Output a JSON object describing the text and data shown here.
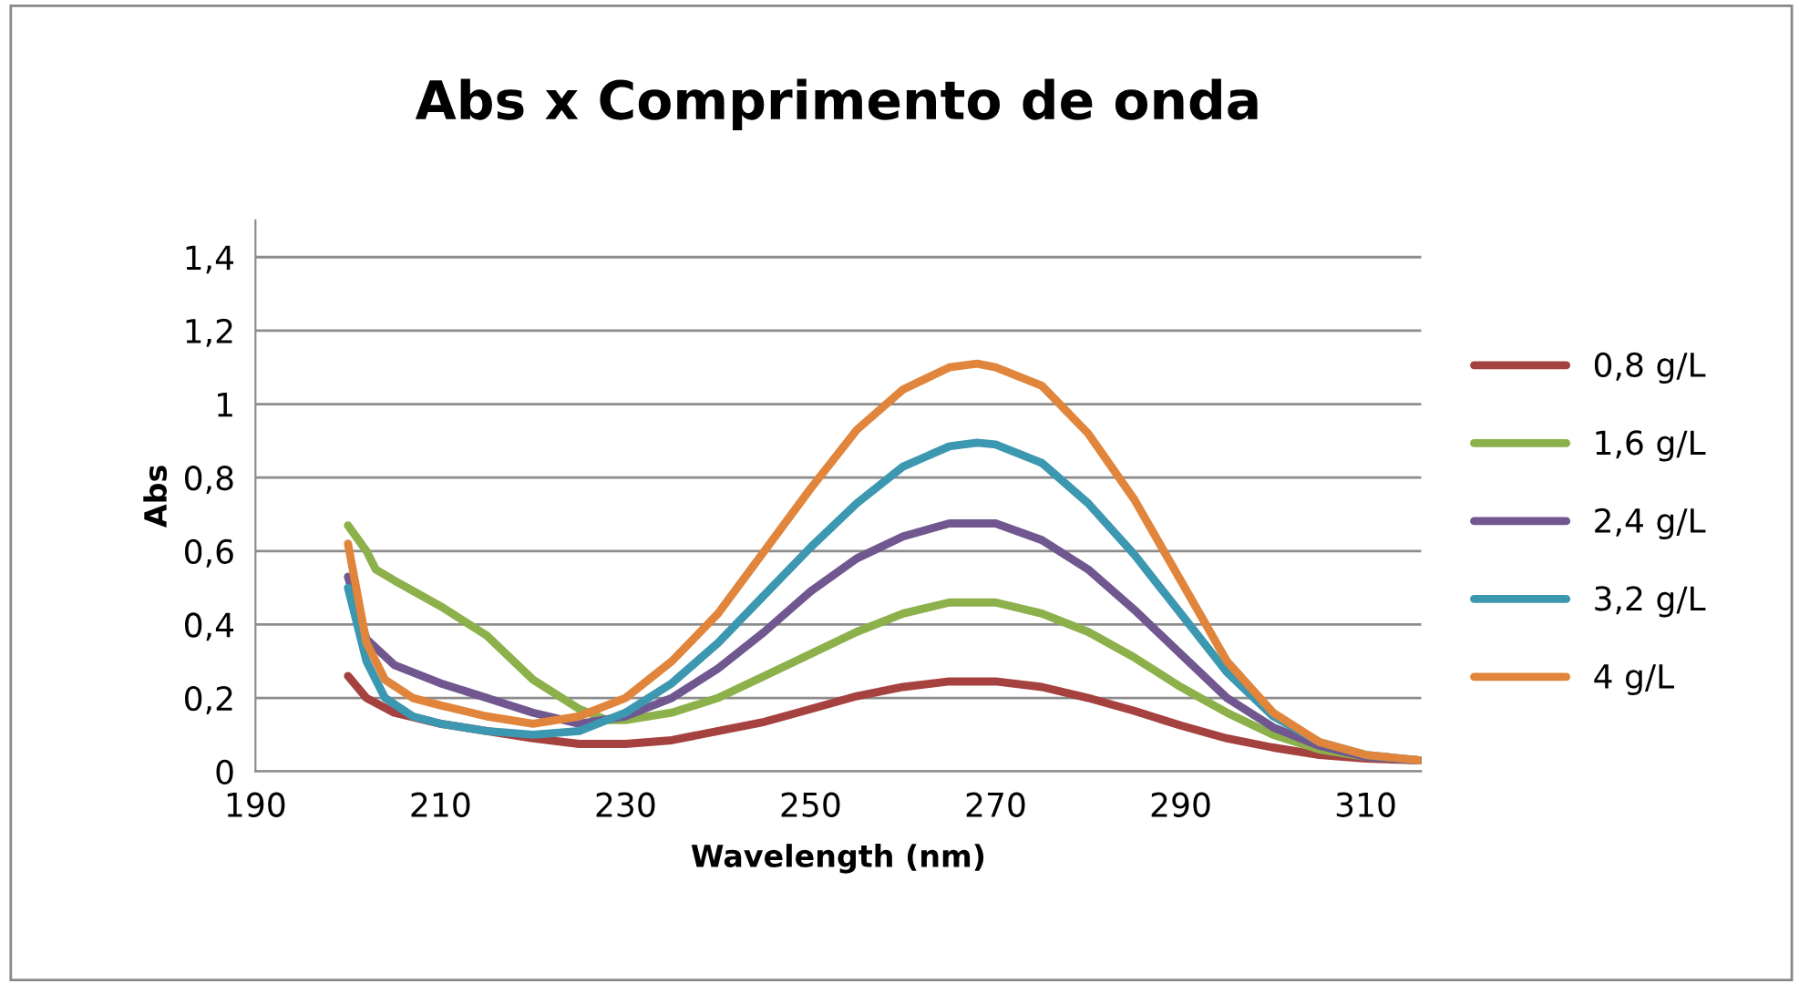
{
  "chart_data": {
    "type": "line",
    "title": "Abs x Comprimento de onda",
    "xlabel": "Wavelength (nm)",
    "ylabel": "Abs",
    "xlim": [
      190,
      316
    ],
    "xticks": [
      190,
      210,
      230,
      250,
      270,
      290,
      310
    ],
    "ylim": [
      0,
      1.5
    ],
    "yticks": [
      {
        "value": 0,
        "label": "0"
      },
      {
        "value": 0.2,
        "label": "0,2"
      },
      {
        "value": 0.4,
        "label": "0,4"
      },
      {
        "value": 0.6,
        "label": "0,6"
      },
      {
        "value": 0.8,
        "label": "0,8"
      },
      {
        "value": 1,
        "label": "1"
      },
      {
        "value": 1.2,
        "label": "1,2"
      },
      {
        "value": 1.4,
        "label": "1,4"
      }
    ],
    "grid": "y",
    "legend": "right",
    "marker": "none",
    "line_style": "solid",
    "series": [
      {
        "name": "0,8 g/L",
        "color": "#a5413e",
        "x": [
          200,
          202,
          205,
          210,
          215,
          220,
          225,
          230,
          235,
          240,
          245,
          250,
          255,
          260,
          265,
          270,
          275,
          280,
          285,
          290,
          295,
          300,
          305,
          310,
          316
        ],
        "values": [
          0.26,
          0.2,
          0.16,
          0.13,
          0.11,
          0.09,
          0.075,
          0.075,
          0.085,
          0.11,
          0.135,
          0.17,
          0.205,
          0.23,
          0.245,
          0.245,
          0.23,
          0.2,
          0.165,
          0.125,
          0.09,
          0.065,
          0.045,
          0.035,
          0.03
        ]
      },
      {
        "name": "1,6 g/L",
        "color": "#8cb04a",
        "x": [
          200,
          202,
          203,
          205,
          210,
          215,
          220,
          225,
          228,
          230,
          235,
          240,
          245,
          250,
          255,
          260,
          265,
          270,
          275,
          280,
          285,
          290,
          295,
          300,
          305,
          310,
          316
        ],
        "values": [
          0.67,
          0.6,
          0.55,
          0.52,
          0.45,
          0.37,
          0.25,
          0.17,
          0.14,
          0.14,
          0.16,
          0.2,
          0.26,
          0.32,
          0.38,
          0.43,
          0.46,
          0.46,
          0.43,
          0.38,
          0.31,
          0.23,
          0.16,
          0.1,
          0.06,
          0.04,
          0.03
        ]
      },
      {
        "name": "2,4 g/L",
        "color": "#70578f",
        "x": [
          200,
          202,
          205,
          210,
          215,
          220,
          225,
          230,
          235,
          240,
          245,
          250,
          255,
          260,
          265,
          270,
          275,
          280,
          285,
          290,
          295,
          300,
          305,
          310,
          316
        ],
        "values": [
          0.53,
          0.36,
          0.29,
          0.24,
          0.2,
          0.16,
          0.13,
          0.15,
          0.2,
          0.28,
          0.38,
          0.49,
          0.58,
          0.64,
          0.675,
          0.675,
          0.63,
          0.55,
          0.44,
          0.32,
          0.2,
          0.12,
          0.07,
          0.04,
          0.03
        ]
      },
      {
        "name": "3,2 g/L",
        "color": "#3c97b0",
        "x": [
          200,
          202,
          204,
          207,
          210,
          215,
          220,
          225,
          230,
          235,
          240,
          245,
          250,
          255,
          260,
          265,
          268,
          270,
          275,
          280,
          285,
          290,
          295,
          300,
          305,
          310,
          316
        ],
        "values": [
          0.5,
          0.3,
          0.2,
          0.15,
          0.13,
          0.11,
          0.1,
          0.11,
          0.16,
          0.24,
          0.35,
          0.48,
          0.61,
          0.73,
          0.83,
          0.885,
          0.895,
          0.89,
          0.84,
          0.73,
          0.59,
          0.43,
          0.27,
          0.15,
          0.08,
          0.045,
          0.03
        ]
      },
      {
        "name": "4 g/L",
        "color": "#e0853b",
        "x": [
          200,
          202,
          204,
          207,
          210,
          215,
          220,
          225,
          230,
          235,
          240,
          245,
          250,
          255,
          260,
          265,
          268,
          270,
          275,
          280,
          285,
          290,
          295,
          300,
          305,
          310,
          316
        ],
        "values": [
          0.62,
          0.35,
          0.25,
          0.2,
          0.18,
          0.15,
          0.13,
          0.15,
          0.2,
          0.3,
          0.43,
          0.6,
          0.77,
          0.93,
          1.04,
          1.1,
          1.11,
          1.1,
          1.05,
          0.92,
          0.74,
          0.52,
          0.3,
          0.16,
          0.08,
          0.045,
          0.03
        ]
      }
    ]
  }
}
